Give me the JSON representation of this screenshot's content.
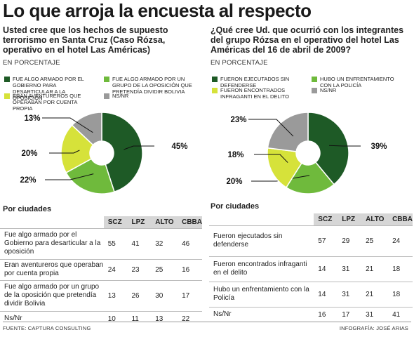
{
  "title": "Lo que arroja la encuesta al respecto",
  "unit_label": "EN PORCENTAJE",
  "by_city_label": "Por ciudades",
  "footer": {
    "source": "FUENTE: CAPTURA CONSULTING",
    "credit": "INFOGRAFÍA: JOSÉ ARIAS"
  },
  "colors": {
    "dark_green": "#1e5a26",
    "light_green": "#6fba3c",
    "yellow_green": "#d6e23a",
    "gray": "#9a9a9a"
  },
  "left": {
    "question": "Usted cree que los hechos de supuesto terrorismo en Santa Cruz (Caso Rózsa, operativo en el hotel Las Américas)",
    "legend": [
      {
        "label": "FUE ALGO ARMADO POR EL GOBIERNO PARA DESARTICULAR A LA OPOSICIÓN",
        "color": "#1e5a26"
      },
      {
        "label": "FUE ALGO ARMADO POR UN GRUPO DE LA OPOSICIÓN QUE PRETENDÍA DIVIDIR BOLIVIA",
        "color": "#6fba3c"
      },
      {
        "label": "ERAN AVENTUREROS QUE OPERABAN POR CUENTA PROPIA",
        "color": "#d6e23a"
      },
      {
        "label": "NS/NR",
        "color": "#9a9a9a"
      }
    ],
    "table": {
      "headers": [
        "SCZ",
        "LPZ",
        "ALTO",
        "CBBA"
      ],
      "rows": [
        {
          "label": "Fue algo armado por el Gobierno para desarticular a la oposición",
          "values": [
            "55",
            "41",
            "32",
            "46"
          ]
        },
        {
          "label": "Eran aventureros que operaban por cuenta propia",
          "values": [
            "24",
            "23",
            "25",
            "16"
          ]
        },
        {
          "label": "Fue algo armado por un grupo de la oposición que pretendía dividir Bolivia",
          "values": [
            "13",
            "26",
            "30",
            "17"
          ]
        },
        {
          "label": "Ns/Nr",
          "values": [
            "10",
            "11",
            "13",
            "22"
          ]
        }
      ]
    }
  },
  "right": {
    "question": "¿Qué cree Ud. que ocurrió con los integrantes del grupo Rózsa en el operativo del hotel Las Américas del 16 de abril de 2009?",
    "legend": [
      {
        "label": "FUERON EJECUTADOS SIN DEFENDERSE",
        "color": "#1e5a26"
      },
      {
        "label": "HUBO UN ENFRENTAMIENTO CON LA POLICÍA",
        "color": "#6fba3c"
      },
      {
        "label": "FUERON ENCONTRADOS INFRAGANTI EN EL DELITO",
        "color": "#d6e23a"
      },
      {
        "label": "NS/NR",
        "color": "#9a9a9a"
      }
    ],
    "table": {
      "headers": [
        "SCZ",
        "LPZ",
        "ALTO",
        "CBBA"
      ],
      "rows": [
        {
          "label": "Fueron ejecutados sin defenderse",
          "values": [
            "57",
            "29",
            "25",
            "24"
          ]
        },
        {
          "label": "Fueron encontrados infraganti en el delito",
          "values": [
            "14",
            "31",
            "21",
            "18"
          ]
        },
        {
          "label": "Hubo un enfrentamiento con la Policía",
          "values": [
            "14",
            "31",
            "21",
            "18"
          ]
        },
        {
          "label": "Ns/Nr",
          "values": [
            "16",
            "17",
            "31",
            "41"
          ]
        }
      ]
    }
  },
  "chart_data": [
    {
      "type": "pie",
      "categories": [
        "Fue algo armado por el Gobierno para desarticular a la oposición",
        "Fue algo armado por un grupo de la oposición que pretendía dividir Bolivia",
        "Eran aventureros que operaban por cuenta propia",
        "Ns/Nr"
      ],
      "values": [
        45,
        22,
        20,
        13
      ],
      "labels": [
        "45%",
        "22%",
        "20%",
        "13%"
      ],
      "colors": [
        "#1e5a26",
        "#6fba3c",
        "#d6e23a",
        "#9a9a9a"
      ]
    },
    {
      "type": "pie",
      "categories": [
        "Fueron ejecutados sin defenderse",
        "Hubo un enfrentamiento con la Policía",
        "Fueron encontrados infraganti en el delito",
        "Ns/Nr"
      ],
      "values": [
        39,
        20,
        18,
        23
      ],
      "labels": [
        "39%",
        "20%",
        "18%",
        "23%"
      ],
      "colors": [
        "#1e5a26",
        "#6fba3c",
        "#d6e23a",
        "#9a9a9a"
      ]
    },
    {
      "type": "table",
      "columns": [
        "SCZ",
        "LPZ",
        "ALTO",
        "CBBA"
      ],
      "rows": [
        {
          "label": "Fue algo armado por el Gobierno para desarticular a la oposición",
          "values": [
            55,
            41,
            32,
            46
          ]
        },
        {
          "label": "Eran aventureros que operaban por cuenta propia",
          "values": [
            24,
            23,
            25,
            16
          ]
        },
        {
          "label": "Fue algo armado por un grupo de la oposición que pretendía dividir Bolivia",
          "values": [
            13,
            26,
            30,
            17
          ]
        },
        {
          "label": "Ns/Nr",
          "values": [
            10,
            11,
            13,
            22
          ]
        }
      ]
    },
    {
      "type": "table",
      "columns": [
        "SCZ",
        "LPZ",
        "ALTO",
        "CBBA"
      ],
      "rows": [
        {
          "label": "Fueron ejecutados sin defenderse",
          "values": [
            57,
            29,
            25,
            24
          ]
        },
        {
          "label": "Fueron encontrados infraganti en el delito",
          "values": [
            14,
            31,
            21,
            18
          ]
        },
        {
          "label": "Hubo un enfrentamiento con la Policía",
          "values": [
            14,
            31,
            21,
            18
          ]
        },
        {
          "label": "Ns/Nr",
          "values": [
            16,
            17,
            31,
            41
          ]
        }
      ]
    }
  ]
}
